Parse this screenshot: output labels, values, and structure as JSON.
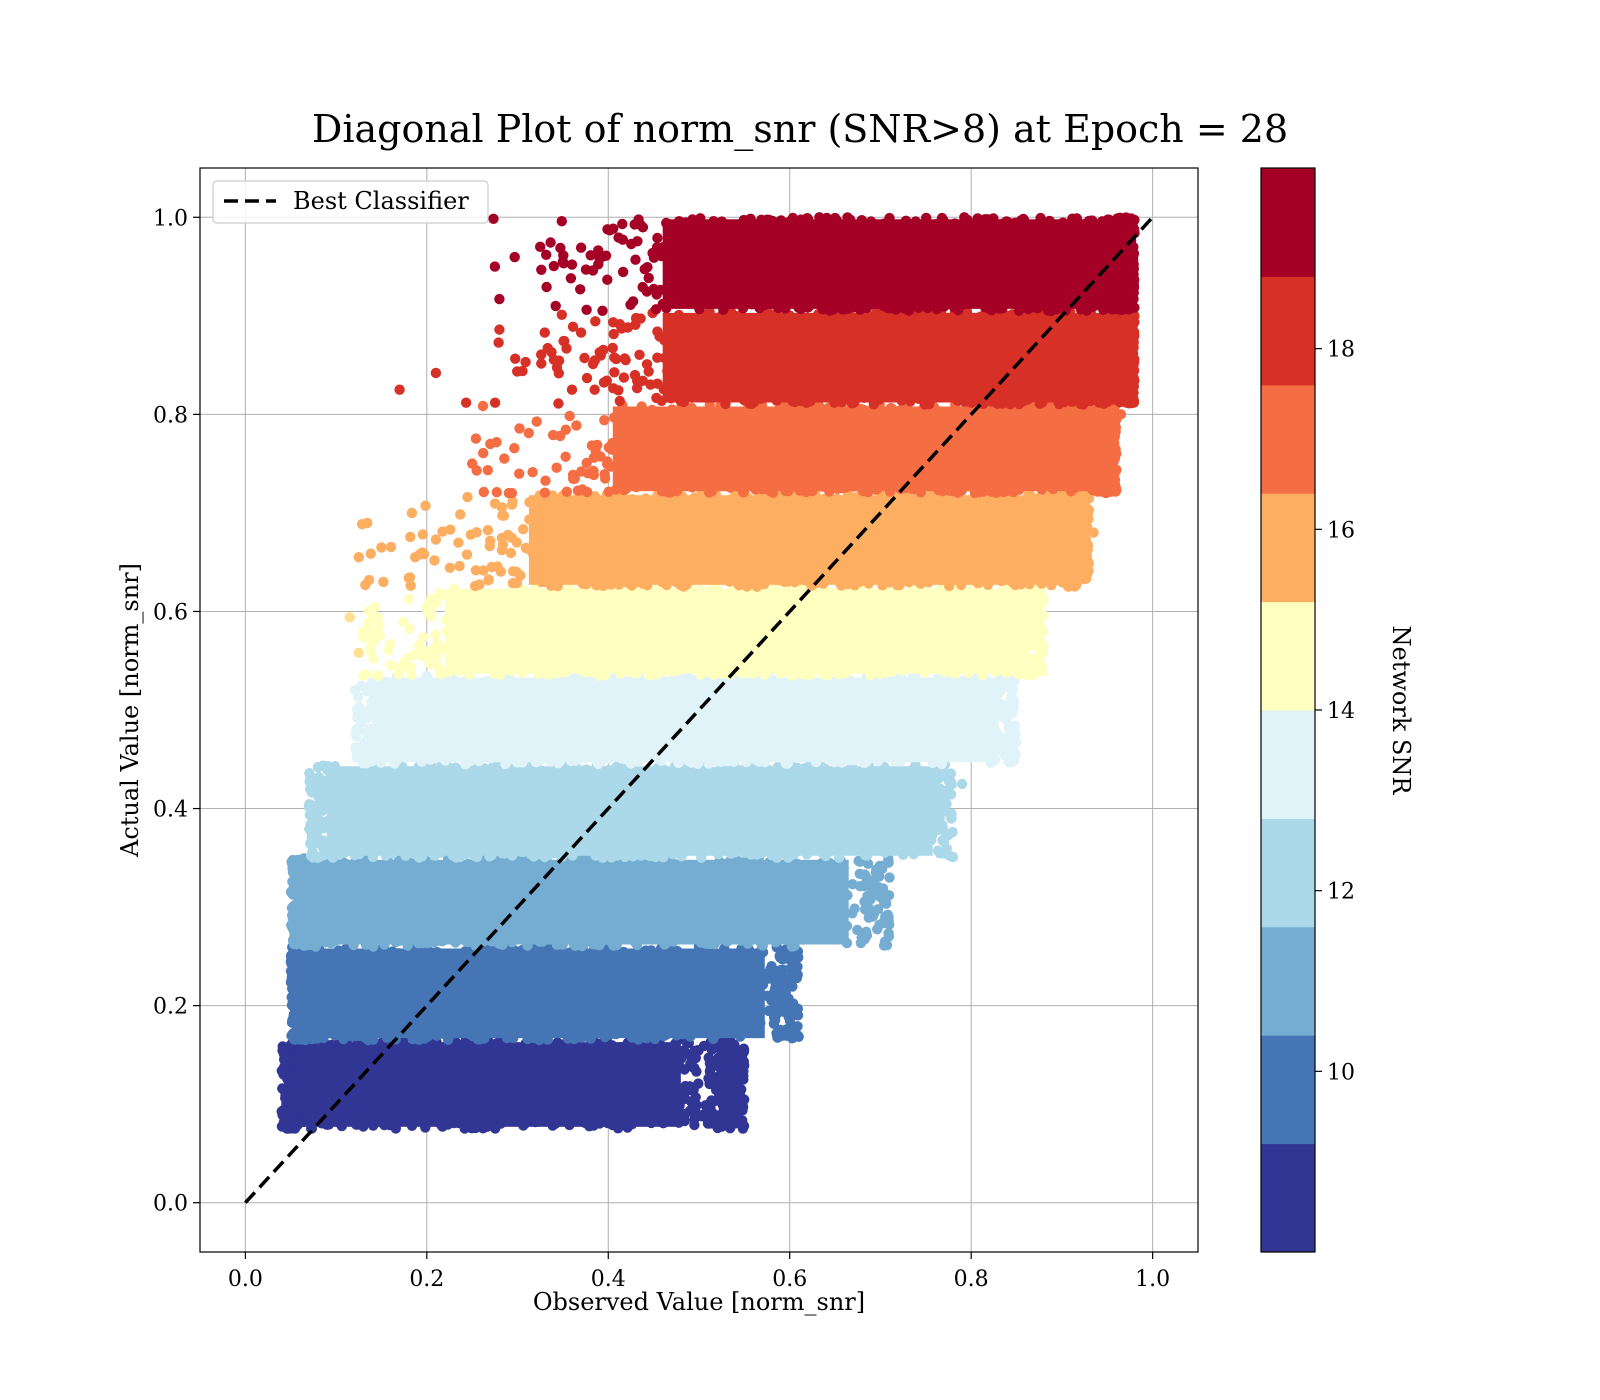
{
  "chart_data": {
    "type": "scatter",
    "title": "Diagonal Plot of norm_snr (SNR>8) at Epoch = 28",
    "xlabel": "Observed Value [norm_snr]",
    "ylabel": "Actual Value [norm_snr]",
    "xlim": [
      -0.05,
      1.05
    ],
    "ylim": [
      -0.05,
      1.05
    ],
    "xticks": [
      "0.0",
      "0.2",
      "0.4",
      "0.6",
      "0.8",
      "1.0"
    ],
    "yticks": [
      "0.0",
      "0.2",
      "0.4",
      "0.6",
      "0.8",
      "1.0"
    ],
    "grid": true,
    "legend": {
      "placement": "top-left",
      "entries": [
        {
          "label": "Best Classifier",
          "style": "dashed",
          "color": "#000000"
        }
      ]
    },
    "reference_line": {
      "name": "Best Classifier",
      "x": [
        0.0,
        1.0
      ],
      "y": [
        0.0,
        1.0
      ]
    },
    "colorbar": {
      "label": "Network SNR",
      "range": [
        8,
        20
      ],
      "ticks": [
        "10",
        "12",
        "14",
        "16",
        "18"
      ],
      "tick_values": [
        10,
        12,
        14,
        16,
        18
      ],
      "colors": [
        "#313695",
        "#4575b4",
        "#74add1",
        "#abd9e9",
        "#e0f3f8",
        "#ffffbf",
        "#fee090",
        "#fdae61",
        "#f46d43",
        "#d73027",
        "#a50026"
      ]
    },
    "color_bands": [
      {
        "snr_range": [
          8,
          9.2
        ],
        "y_range": [
          0.075,
          0.165
        ],
        "x_range": [
          0.04,
          0.55
        ],
        "color": "#313695"
      },
      {
        "snr_range": [
          9.2,
          10.4
        ],
        "y_range": [
          0.165,
          0.26
        ],
        "x_range": [
          0.05,
          0.61
        ],
        "color": "#4575b4"
      },
      {
        "snr_range": [
          10.4,
          11.6
        ],
        "y_range": [
          0.26,
          0.35
        ],
        "x_range": [
          0.05,
          0.71
        ],
        "color": "#74add1"
      },
      {
        "snr_range": [
          11.6,
          12.8
        ],
        "y_range": [
          0.35,
          0.445
        ],
        "x_range": [
          0.07,
          0.78
        ],
        "color": "#abd9e9"
      },
      {
        "snr_range": [
          12.8,
          14.0
        ],
        "y_range": [
          0.445,
          0.535
        ],
        "x_range": [
          0.12,
          0.85
        ],
        "color": "#e0f3f8"
      },
      {
        "snr_range": [
          14.0,
          15.2
        ],
        "y_range": [
          0.535,
          0.625
        ],
        "x_range": [
          0.12,
          0.88
        ],
        "color": "#ffffbf"
      },
      {
        "snr_range": [
          15.2,
          16.4
        ],
        "y_range": [
          0.625,
          0.72
        ],
        "x_range": [
          0.12,
          0.93
        ],
        "color": "#fdae61"
      },
      {
        "snr_range": [
          16.4,
          17.6
        ],
        "y_range": [
          0.72,
          0.81
        ],
        "x_range": [
          0.25,
          0.96
        ],
        "color": "#f46d43"
      },
      {
        "snr_range": [
          17.6,
          18.8
        ],
        "y_range": [
          0.81,
          0.905
        ],
        "x_range": [
          0.17,
          0.98
        ],
        "color": "#d73027"
      },
      {
        "snr_range": [
          18.8,
          20
        ],
        "y_range": [
          0.905,
          1.0
        ],
        "x_range": [
          0.27,
          0.98
        ],
        "color": "#a50026"
      }
    ],
    "outliers": [
      {
        "x": 0.17,
        "y": 0.825,
        "color": "#d73027"
      },
      {
        "x": 0.21,
        "y": 0.842,
        "color": "#d73027"
      },
      {
        "x": 0.275,
        "y": 0.95,
        "color": "#a50026"
      },
      {
        "x": 0.28,
        "y": 0.917,
        "color": "#a50026"
      },
      {
        "x": 0.325,
        "y": 0.97,
        "color": "#a50026"
      },
      {
        "x": 0.35,
        "y": 0.955,
        "color": "#a50026"
      },
      {
        "x": 0.36,
        "y": 0.952,
        "color": "#a50026"
      },
      {
        "x": 0.43,
        "y": 0.957,
        "color": "#a50026"
      },
      {
        "x": 0.485,
        "y": 0.98,
        "color": "#a50026"
      },
      {
        "x": 0.49,
        "y": 0.96,
        "color": "#a50026"
      },
      {
        "x": 0.52,
        "y": 0.93,
        "color": "#a50026"
      },
      {
        "x": 0.28,
        "y": 0.886,
        "color": "#d73027"
      },
      {
        "x": 0.33,
        "y": 0.883,
        "color": "#d73027"
      },
      {
        "x": 0.37,
        "y": 0.883,
        "color": "#d73027"
      },
      {
        "x": 0.36,
        "y": 0.825,
        "color": "#d73027"
      },
      {
        "x": 0.385,
        "y": 0.825,
        "color": "#d73027"
      },
      {
        "x": 0.27,
        "y": 0.77,
        "color": "#f46d43"
      },
      {
        "x": 0.25,
        "y": 0.75,
        "color": "#f46d43"
      },
      {
        "x": 0.21,
        "y": 0.673,
        "color": "#fdae61"
      },
      {
        "x": 0.125,
        "y": 0.655,
        "color": "#fdae61"
      },
      {
        "x": 0.15,
        "y": 0.665,
        "color": "#fdae61"
      },
      {
        "x": 0.115,
        "y": 0.594,
        "color": "#fee090"
      },
      {
        "x": 0.125,
        "y": 0.558,
        "color": "#fee090"
      },
      {
        "x": 0.08,
        "y": 0.442,
        "color": "#abd9e9"
      },
      {
        "x": 0.07,
        "y": 0.402,
        "color": "#abd9e9"
      },
      {
        "x": 0.705,
        "y": 0.265,
        "color": "#74add1"
      },
      {
        "x": 0.71,
        "y": 0.33,
        "color": "#74add1"
      },
      {
        "x": 0.725,
        "y": 0.353,
        "color": "#abd9e9"
      },
      {
        "x": 0.775,
        "y": 0.373,
        "color": "#abd9e9"
      },
      {
        "x": 0.79,
        "y": 0.425,
        "color": "#abd9e9"
      },
      {
        "x": 0.845,
        "y": 0.457,
        "color": "#e0f3f8"
      },
      {
        "x": 0.545,
        "y": 0.112,
        "color": "#313695"
      },
      {
        "x": 0.495,
        "y": 0.085,
        "color": "#313695"
      },
      {
        "x": 0.405,
        "y": 0.083,
        "color": "#313695"
      },
      {
        "x": 0.58,
        "y": 0.24,
        "color": "#4575b4"
      },
      {
        "x": 0.59,
        "y": 0.225,
        "color": "#4575b4"
      },
      {
        "x": 0.575,
        "y": 0.21,
        "color": "#4575b4"
      },
      {
        "x": 0.52,
        "y": 0.238,
        "color": "#4575b4"
      },
      {
        "x": 0.9,
        "y": 0.63,
        "color": "#fdae61"
      },
      {
        "x": 0.935,
        "y": 0.68,
        "color": "#fdae61"
      },
      {
        "x": 0.96,
        "y": 0.76,
        "color": "#f46d43"
      },
      {
        "x": 0.965,
        "y": 0.8,
        "color": "#f46d43"
      }
    ]
  }
}
